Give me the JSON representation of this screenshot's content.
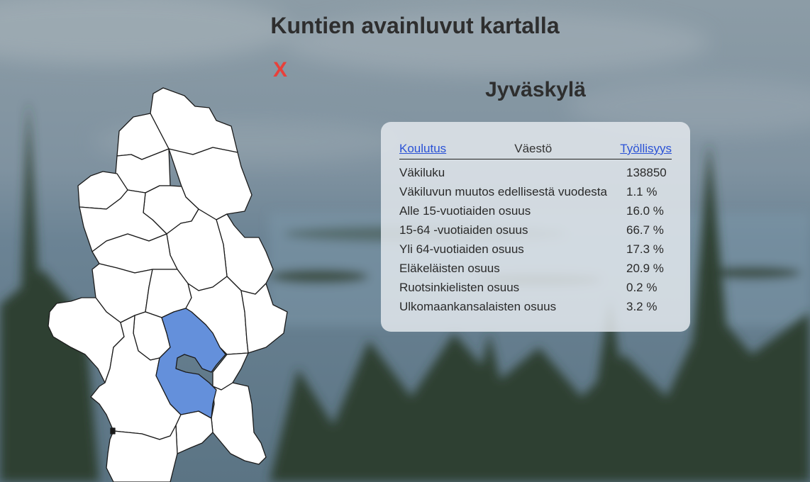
{
  "page": {
    "title": "Kuntien avainluvut kartalla"
  },
  "close": {
    "label": "X"
  },
  "municipality": {
    "name": "Jyväskylä"
  },
  "tabs": {
    "left": "Koulutus",
    "active": "Väestö",
    "right": "Työllisyys"
  },
  "stats": [
    {
      "label": "Väkiluku",
      "value": "138850"
    },
    {
      "label": "Väkiluvun muutos edellisestä vuodesta",
      "value": "1.1 %"
    },
    {
      "label": "Alle 15-vuotiaiden osuus",
      "value": "16.0 %"
    },
    {
      "label": "15-64 -vuotiaiden osuus",
      "value": "66.7 %"
    },
    {
      "label": "Yli 64-vuotiaiden osuus",
      "value": "17.3 %"
    },
    {
      "label": "Eläkeläisten osuus",
      "value": "20.9 %"
    },
    {
      "label": "Ruotsinkielisten osuus",
      "value": "0.2 %"
    },
    {
      "label": "Ulkomaankansalaisten osuus",
      "value": "3.2 %"
    }
  ],
  "colors": {
    "highlight": "#6490db",
    "region_fill": "#ffffff",
    "close": "#e8403a",
    "link": "#2a52d6"
  }
}
